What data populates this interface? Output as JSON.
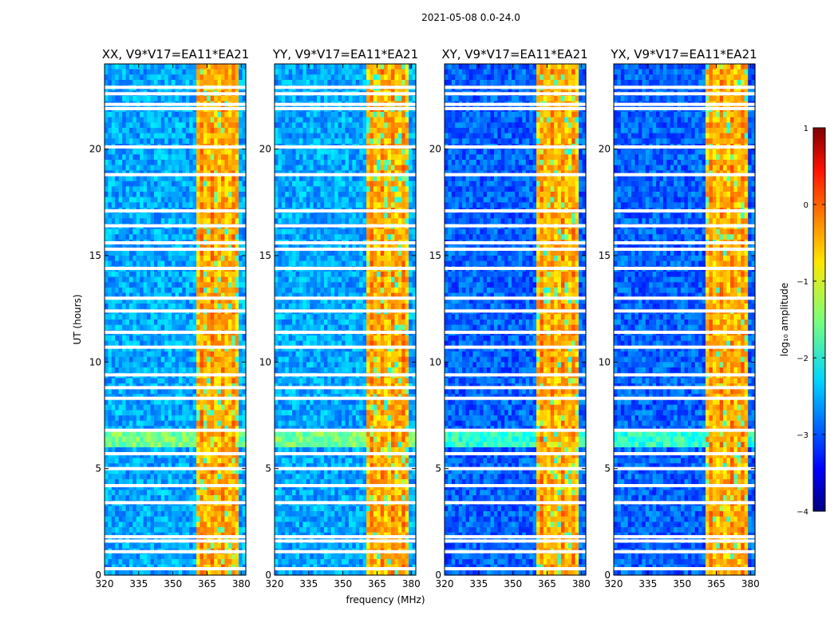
{
  "chart_data": {
    "type": "heatmap",
    "suptitle": "2021-05-08 0.0-24.0",
    "xlabel": "frequency (MHz)",
    "ylabel": "UT (hours)",
    "xlim": [
      320,
      382
    ],
    "ylim": [
      0,
      24
    ],
    "xticks": [
      "320",
      "335",
      "350",
      "365",
      "380"
    ],
    "yticks": [
      "0",
      "5",
      "10",
      "15",
      "20"
    ],
    "colormap": "jet",
    "panels": [
      {
        "title": "XX, V9*V17=EA11*EA21"
      },
      {
        "title": "YY, V9*V17=EA11*EA21"
      },
      {
        "title": "XY, V9*V17=EA11*EA21"
      },
      {
        "title": "YX, V9*V17=EA11*EA21"
      }
    ],
    "colorbar": {
      "label": "log₁₀ amplitude",
      "range": [
        -4,
        1
      ],
      "ticks": [
        "1",
        "0",
        "−1",
        "−2",
        "−3",
        "−4"
      ]
    },
    "rfi_band_mhz": [
      360,
      379
    ],
    "flagged_rows_hours": [
      0.3,
      1.1,
      1.6,
      1.8,
      3.4,
      4.2,
      5.0,
      5.7,
      6.8,
      8.3,
      8.8,
      9.4,
      10.7,
      11.4,
      12.4,
      13.0,
      14.4,
      15.3,
      15.6,
      16.4,
      17.1,
      18.8,
      20.1,
      21.9,
      22.1,
      22.6,
      22.9
    ]
  }
}
